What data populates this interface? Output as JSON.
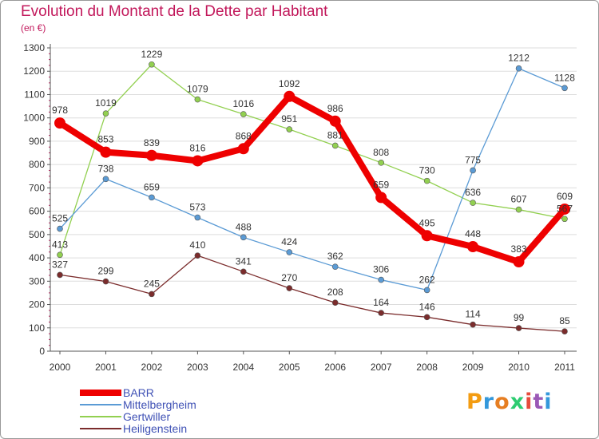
{
  "header": {
    "title": "Evolution du Montant de la Dette par Habitant",
    "unit": "(en €)"
  },
  "logo": {
    "letters": [
      "P",
      "r",
      "o",
      "x",
      "i",
      "t",
      "i"
    ]
  },
  "colors": {
    "title": "#c2185b",
    "axis": "#555555",
    "grid": "#dddddd"
  },
  "chart_data": {
    "type": "line",
    "x": [
      "2000",
      "2001",
      "2002",
      "2003",
      "2004",
      "2005",
      "2006",
      "2007",
      "2008",
      "2009",
      "2010",
      "2011"
    ],
    "ylim": [
      0,
      1300
    ],
    "yticks": [
      0,
      100,
      200,
      300,
      400,
      500,
      600,
      700,
      800,
      900,
      1000,
      1100,
      1200,
      1300
    ],
    "grid": "horizontal",
    "legend_position": "bottom-left",
    "series": [
      {
        "name": "BARR",
        "color": "#ee0000",
        "values": [
          978,
          853,
          839,
          816,
          868,
          1092,
          986,
          659,
          495,
          448,
          383,
          609
        ]
      },
      {
        "name": "Mittelbergheim",
        "color": "#5b9bd5",
        "values": [
          525,
          738,
          659,
          573,
          488,
          424,
          362,
          306,
          262,
          775,
          1212,
          1128
        ]
      },
      {
        "name": "Gertwiller",
        "color": "#92d050",
        "values": [
          413,
          1019,
          1229,
          1079,
          1016,
          951,
          881,
          808,
          730,
          636,
          607,
          567
        ]
      },
      {
        "name": "Heiligenstein",
        "color": "#7b2c2c",
        "values": [
          327,
          299,
          245,
          410,
          341,
          270,
          208,
          164,
          146,
          114,
          99,
          85
        ]
      }
    ]
  }
}
